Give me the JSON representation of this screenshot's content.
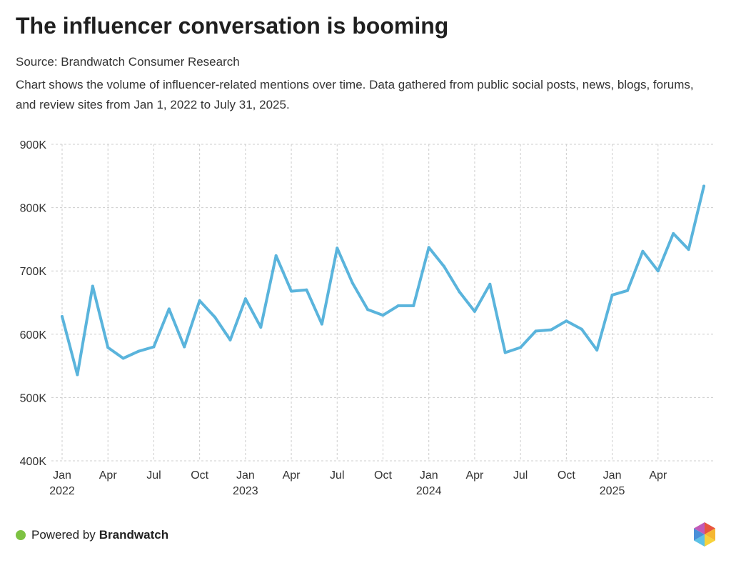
{
  "header": {
    "title": "The influencer conversation is booming",
    "source": "Source: Brandwatch Consumer Research",
    "description": "Chart shows the volume of influencer-related mentions over time. Data gathered from public social posts, news, blogs, forums, and review sites from Jan 1, 2022 to July 31, 2025."
  },
  "footer": {
    "powered_by": "Powered by",
    "brand": "Brandwatch"
  },
  "colors": {
    "line": "#5ab4dc",
    "grid": "#cccccc",
    "accent_dot": "#7dc242"
  },
  "chart_data": {
    "type": "line",
    "title": "The influencer conversation is booming",
    "xlabel": "",
    "ylabel": "",
    "ylim": [
      400000,
      900000
    ],
    "yticks": [
      400000,
      500000,
      600000,
      700000,
      800000,
      900000
    ],
    "ytick_labels": [
      "400K",
      "500K",
      "600K",
      "700K",
      "800K",
      "900K"
    ],
    "x_start": "2022-01",
    "x_end": "2025-07",
    "xticks": [
      {
        "month": "2022-01",
        "label": "Jan",
        "year": "2022"
      },
      {
        "month": "2022-04",
        "label": "Apr",
        "year": ""
      },
      {
        "month": "2022-07",
        "label": "Jul",
        "year": ""
      },
      {
        "month": "2022-10",
        "label": "Oct",
        "year": ""
      },
      {
        "month": "2023-01",
        "label": "Jan",
        "year": "2023"
      },
      {
        "month": "2023-04",
        "label": "Apr",
        "year": ""
      },
      {
        "month": "2023-07",
        "label": "Jul",
        "year": ""
      },
      {
        "month": "2023-10",
        "label": "Oct",
        "year": ""
      },
      {
        "month": "2024-01",
        "label": "Jan",
        "year": "2024"
      },
      {
        "month": "2024-04",
        "label": "Apr",
        "year": ""
      },
      {
        "month": "2024-07",
        "label": "Jul",
        "year": ""
      },
      {
        "month": "2024-10",
        "label": "Oct",
        "year": ""
      },
      {
        "month": "2025-01",
        "label": "Jan",
        "year": "2025"
      },
      {
        "month": "2025-04",
        "label": "Apr",
        "year": ""
      }
    ],
    "grid": true,
    "legend": "none",
    "series": [
      {
        "x": [
          "2022-01",
          "2022-02",
          "2022-03",
          "2022-04",
          "2022-05",
          "2022-06",
          "2022-07",
          "2022-08",
          "2022-09",
          "2022-10",
          "2022-11",
          "2022-12",
          "2023-01",
          "2023-02",
          "2023-03",
          "2023-04",
          "2023-05",
          "2023-06",
          "2023-07",
          "2023-08",
          "2023-09",
          "2023-10",
          "2023-11",
          "2023-12",
          "2024-01",
          "2024-02",
          "2024-03",
          "2024-04",
          "2024-05",
          "2024-06",
          "2024-07",
          "2024-08",
          "2024-09",
          "2024-10",
          "2024-11",
          "2024-12",
          "2025-01",
          "2025-02",
          "2025-03",
          "2025-04",
          "2025-05",
          "2025-06",
          "2025-07"
        ],
        "values": [
          628000,
          536000,
          676000,
          579000,
          562000,
          573000,
          580000,
          640000,
          580000,
          653000,
          627000,
          591000,
          656000,
          611000,
          724000,
          668000,
          670000,
          616000,
          736000,
          681000,
          639000,
          630000,
          645000,
          645000,
          737000,
          707000,
          667000,
          636000,
          679000,
          571000,
          579000,
          605000,
          607000,
          621000,
          608000,
          575000,
          662000,
          669000,
          731000,
          700000,
          759000,
          734000,
          834000
        ]
      }
    ]
  }
}
